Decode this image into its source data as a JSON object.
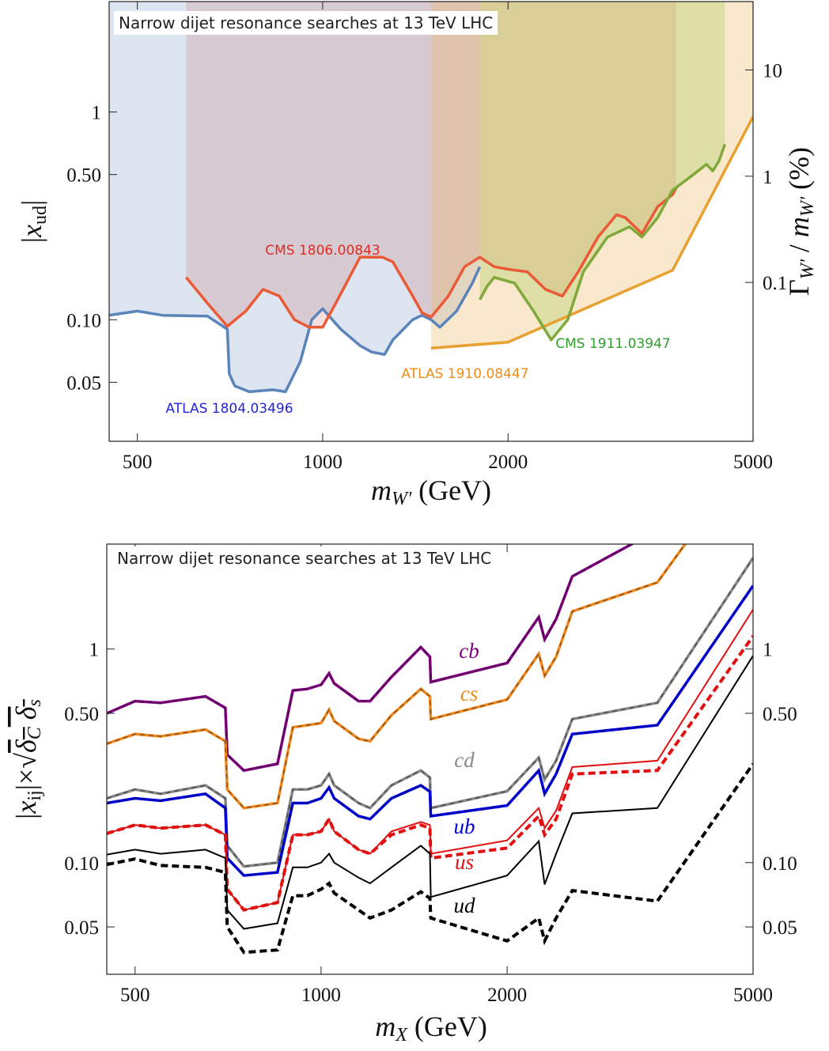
{
  "chart_data": [
    {
      "type": "area",
      "title": "Narrow dijet resonance searches at 13 TeV LHC",
      "x_label": [
        {
          "text": "m",
          "style": "italic"
        },
        {
          "text": "W'",
          "style": "sub italic"
        },
        {
          "text": " (GeV)",
          "style": "normal"
        }
      ],
      "y_label": [
        {
          "text": "|",
          "style": "normal"
        },
        {
          "text": "x",
          "style": "italic"
        },
        {
          "text": "ud",
          "style": "sub"
        },
        {
          "text": "|",
          "style": "normal"
        }
      ],
      "y2_label": [
        {
          "text": "Γ",
          "style": "normal"
        },
        {
          "text": "W'",
          "style": "sub italic"
        },
        {
          "text": " / ",
          "style": "normal"
        },
        {
          "text": "m",
          "style": "italic"
        },
        {
          "text": "W'",
          "style": "sub italic"
        },
        {
          "text": " (%)",
          "style": "normal"
        }
      ],
      "x_scale": "log",
      "y_scale": "log",
      "y2_scale": "log",
      "xlim": [
        450,
        5000
      ],
      "ylim": [
        0.026,
        3.4
      ],
      "y2lim": [
        0.0032,
        44
      ],
      "xticks": [
        500,
        1000,
        2000,
        5000
      ],
      "yticks": [
        {
          "value": 0.05,
          "label": "0.05"
        },
        {
          "value": 0.1,
          "label": "0.10"
        },
        {
          "value": 0.5,
          "label": "0.50"
        },
        1
      ],
      "y2ticks": [
        0.1,
        1,
        10
      ],
      "series": [
        {
          "name": "ATLAS 1804.03496",
          "color": "#5b84ba",
          "fill": "rgba(120,150,200,0.25)",
          "label_color": "#2424d8",
          "x": [
            450,
            500,
            550,
            650,
            700,
            705,
            720,
            760,
            830,
            870,
            920,
            960,
            1000,
            1070,
            1150,
            1200,
            1260,
            1300,
            1400,
            1450,
            1500,
            1550,
            1650,
            1750,
            1800
          ],
          "values": [
            0.105,
            0.11,
            0.105,
            0.104,
            0.09,
            0.055,
            0.048,
            0.045,
            0.046,
            0.045,
            0.063,
            0.1,
            0.113,
            0.09,
            0.075,
            0.07,
            0.068,
            0.08,
            0.1,
            0.105,
            0.1,
            0.092,
            0.11,
            0.15,
            0.18
          ]
        },
        {
          "name": "CMS 1806.00843",
          "color": "#ea5a36",
          "fill": "rgba(200,110,100,0.22)",
          "label_color": "#e02a20",
          "x": [
            600,
            650,
            700,
            750,
            800,
            850,
            900,
            950,
            1000,
            1050,
            1150,
            1250,
            1300,
            1400,
            1450,
            1500,
            1600,
            1700,
            1800,
            1900,
            2000,
            2150,
            2300,
            2450,
            2600,
            2800,
            3000,
            3100,
            3300,
            3500,
            3700,
            3750
          ],
          "values": [
            0.16,
            0.12,
            0.093,
            0.11,
            0.14,
            0.13,
            0.1,
            0.092,
            0.092,
            0.12,
            0.2,
            0.2,
            0.19,
            0.13,
            0.108,
            0.103,
            0.13,
            0.18,
            0.2,
            0.18,
            0.175,
            0.17,
            0.14,
            0.13,
            0.17,
            0.25,
            0.32,
            0.31,
            0.26,
            0.35,
            0.4,
            0.43
          ]
        },
        {
          "name": "ATLAS 1910.08447",
          "color": "#e8a030",
          "fill": "rgba(240,180,90,0.3)",
          "label_color": "#ee8c18",
          "x": [
            1500,
            2000,
            3700,
            5000
          ],
          "values": [
            0.073,
            0.078,
            0.173,
            0.95
          ]
        },
        {
          "name": "CMS 1911.03947",
          "color": "#80a83a",
          "fill": "rgba(160,200,80,0.3)",
          "label_color": "#2ea02e",
          "x": [
            1800,
            1850,
            1900,
            2050,
            2200,
            2350,
            2500,
            2650,
            2900,
            3150,
            3300,
            3500,
            3700,
            4000,
            4200,
            4300,
            4400,
            4500
          ],
          "values": [
            0.125,
            0.145,
            0.16,
            0.15,
            0.11,
            0.08,
            0.1,
            0.17,
            0.25,
            0.28,
            0.25,
            0.31,
            0.42,
            0.5,
            0.56,
            0.52,
            0.58,
            0.7
          ]
        }
      ]
    },
    {
      "type": "line",
      "title": "Narrow dijet resonance searches at 13 TeV LHC",
      "x_label": [
        {
          "text": "m",
          "style": "italic"
        },
        {
          "text": "X",
          "style": "sub italic"
        },
        {
          "text": " (GeV)",
          "style": "normal"
        }
      ],
      "y_label": [
        {
          "text": "|",
          "style": "normal"
        },
        {
          "text": "x",
          "style": "italic"
        },
        {
          "text": "ij",
          "style": "sub"
        },
        {
          "text": "|×√",
          "style": "normal"
        },
        {
          "text": "δ",
          "style": "italic over"
        },
        {
          "text": "C",
          "style": "sub italic over"
        },
        {
          "text": " δ",
          "style": "italic over"
        },
        {
          "text": "s",
          "style": "sub italic over"
        }
      ],
      "x_scale": "log",
      "y_scale": "log",
      "xlim": [
        450,
        5000
      ],
      "ylim": [
        0.03,
        3.1
      ],
      "y2lim": [
        0.03,
        3.1
      ],
      "xticks": [
        500,
        1000,
        2000,
        5000
      ],
      "yticks": [
        {
          "value": 0.05,
          "label": "0.05"
        },
        {
          "value": 0.1,
          "label": "0.10"
        },
        {
          "value": 0.5,
          "label": "0.50"
        },
        1
      ],
      "y2ticks": [
        {
          "value": 0.05,
          "label": "0.05"
        },
        {
          "value": 0.1,
          "label": "0.10"
        },
        {
          "value": 0.5,
          "label": "0.50"
        },
        1
      ],
      "x": [
        450,
        500,
        550,
        650,
        700,
        705,
        750,
        850,
        900,
        950,
        1000,
        1030,
        1050,
        1150,
        1200,
        1300,
        1450,
        1500,
        1505,
        2000,
        2250,
        2300,
        2400,
        2550,
        3500,
        5000
      ],
      "series": [
        {
          "name": "cb",
          "color": "#800080",
          "style": "solid+dashed",
          "values": [
            0.5,
            0.57,
            0.56,
            0.6,
            0.53,
            0.32,
            0.27,
            0.29,
            0.64,
            0.65,
            0.68,
            0.77,
            0.69,
            0.57,
            0.57,
            0.74,
            1.02,
            0.92,
            0.7,
            0.86,
            1.41,
            1.11,
            1.38,
            2.19,
            3.6,
            null
          ]
        },
        {
          "name": "cs",
          "color": "#f08a20",
          "style": "solid+dashed",
          "values": [
            0.36,
            0.4,
            0.39,
            0.42,
            0.37,
            0.22,
            0.18,
            0.19,
            0.43,
            0.44,
            0.45,
            0.52,
            0.46,
            0.38,
            0.37,
            0.49,
            0.65,
            0.6,
            0.47,
            0.58,
            0.95,
            0.75,
            0.92,
            1.5,
            2.05,
            8.5
          ]
        },
        {
          "name": "cd",
          "color": "#888888",
          "style": "solid+dashed",
          "values": [
            0.2,
            0.22,
            0.21,
            0.23,
            0.2,
            0.12,
            0.096,
            0.1,
            0.22,
            0.22,
            0.23,
            0.26,
            0.23,
            0.19,
            0.18,
            0.23,
            0.27,
            0.25,
            0.18,
            0.216,
            0.31,
            0.245,
            0.3,
            0.47,
            0.56,
            2.67
          ]
        },
        {
          "name": "ub",
          "color": "#0000e0",
          "style": "solid+dashed",
          "values": [
            0.19,
            0.2,
            0.195,
            0.21,
            0.18,
            0.105,
            0.087,
            0.09,
            0.19,
            0.19,
            0.2,
            0.225,
            0.2,
            0.165,
            0.16,
            0.2,
            0.23,
            0.215,
            0.165,
            0.185,
            0.27,
            0.21,
            0.26,
            0.4,
            0.44,
            1.98
          ]
        },
        {
          "name": "us",
          "color": "#e01010",
          "style": "solid",
          "values": [
            0.137,
            0.15,
            0.145,
            0.15,
            0.135,
            0.075,
            0.06,
            0.065,
            0.135,
            0.135,
            0.14,
            0.16,
            0.14,
            0.115,
            0.11,
            0.14,
            0.155,
            0.15,
            0.11,
            0.127,
            0.18,
            0.145,
            0.175,
            0.28,
            0.3,
            1.53
          ],
          "dashed_values": [
            0.137,
            0.15,
            0.145,
            0.15,
            0.135,
            0.075,
            0.06,
            0.065,
            0.135,
            0.135,
            0.14,
            0.16,
            0.14,
            0.115,
            0.11,
            0.135,
            0.15,
            0.145,
            0.105,
            0.117,
            0.165,
            0.135,
            0.16,
            0.26,
            0.27,
            1.15
          ]
        },
        {
          "name": "ud",
          "color": "#000000",
          "style": "solid",
          "values": [
            0.109,
            0.115,
            0.11,
            0.115,
            0.105,
            0.06,
            0.049,
            0.052,
            0.095,
            0.095,
            0.1,
            0.11,
            0.1,
            0.085,
            0.08,
            0.095,
            0.12,
            0.11,
            0.069,
            0.087,
            0.126,
            0.079,
            0.11,
            0.17,
            0.18,
            0.93
          ],
          "dashed_values": [
            0.098,
            0.104,
            0.097,
            0.095,
            0.09,
            0.05,
            0.038,
            0.039,
            0.07,
            0.07,
            0.075,
            0.08,
            0.072,
            0.06,
            0.055,
            0.06,
            0.073,
            0.068,
            0.055,
            0.043,
            0.055,
            0.043,
            0.055,
            0.074,
            0.066,
            0.29
          ]
        }
      ]
    }
  ]
}
